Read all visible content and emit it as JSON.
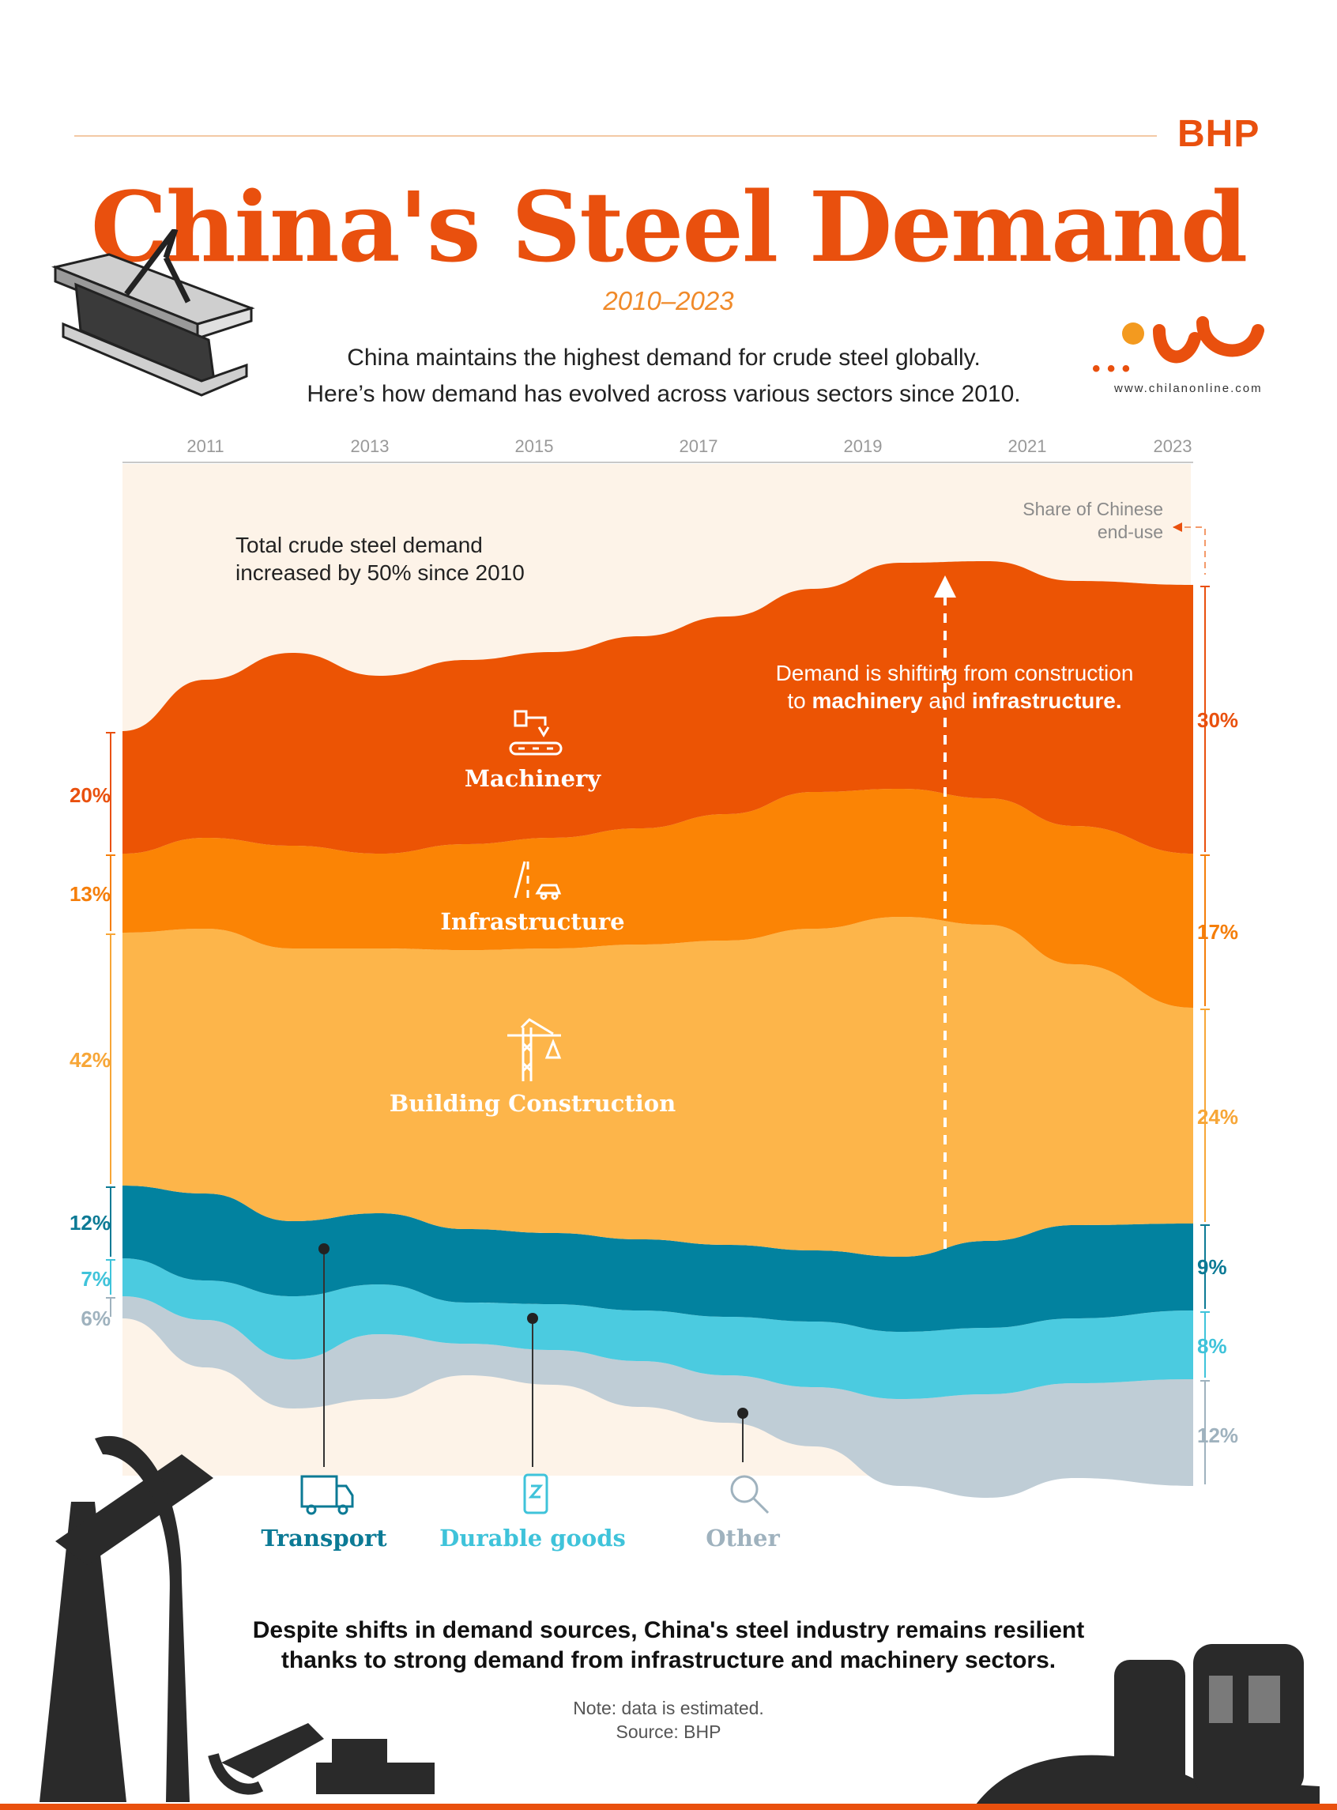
{
  "header": {
    "brand": "BHP",
    "title": "China's Steel Demand",
    "subtitle": "2010–2023",
    "intro_line1": "China maintains the highest demand for crude steel globally.",
    "intro_line2": "Here’s how demand has evolved across various sectors since 2010."
  },
  "watermark": {
    "url": "www.chilanonline.com"
  },
  "chart_data": {
    "type": "area",
    "x_ticks": [
      "2011",
      "2013",
      "2015",
      "2017",
      "2019",
      "2021",
      "2023"
    ],
    "x_range": [
      2010,
      2023
    ],
    "series": [
      {
        "name": "Other",
        "color": "#bfcdd6",
        "label_color": "#9fb2be",
        "start_share": "6%",
        "end_share": "12%"
      },
      {
        "name": "Durable goods",
        "color": "#4bcbe0",
        "label_color": "#3fc3da",
        "start_share": "7%",
        "end_share": "8%"
      },
      {
        "name": "Transport",
        "color": "#02829f",
        "label_color": "#0c7a95",
        "start_share": "12%",
        "end_share": "9%"
      },
      {
        "name": "Building Construction",
        "color": "#fdb54a",
        "label_color": "#f7a637",
        "start_share": "42%",
        "end_share": "24%"
      },
      {
        "name": "Infrastructure",
        "color": "#fb8405",
        "label_color": "#f57e0a",
        "start_share": "13%",
        "end_share": "17%"
      },
      {
        "name": "Machinery",
        "color": "#ec5404",
        "label_color": "#e9500e",
        "start_share": "20%",
        "end_share": "30%"
      }
    ],
    "right_axis_label_line1": "Share of Chinese",
    "right_axis_label_line2": "end-use",
    "annotations": {
      "total_line1": "Total crude steel demand",
      "total_line2": "increased by 50% since 2010",
      "shift_line1": "Demand is shifting from construction",
      "shift_line2_a": "to ",
      "shift_line2_b": "machinery",
      "shift_line2_c": " and ",
      "shift_line2_d": "infrastructure."
    }
  },
  "footer": {
    "line1": "Despite shifts in demand sources, China's steel industry remains resilient",
    "line2": "thanks to strong demand from infrastructure and machinery sectors.",
    "note": "Note: data is estimated.",
    "source": "Source: BHP"
  },
  "colors": {
    "accent": "#e9500e",
    "chart_bg": "#fdf3e8"
  }
}
